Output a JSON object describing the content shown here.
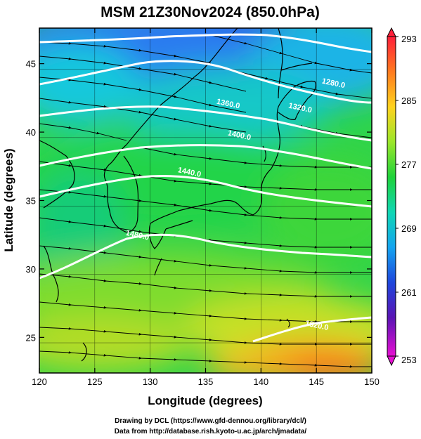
{
  "title": "MSM 21Z30Nov2024 (850.0hPa)",
  "map": {
    "x_label": "Longitude (degrees)",
    "y_label": "Latitude  (degrees)",
    "x_range": [
      120,
      150
    ],
    "y_range": [
      22.4,
      47.6
    ],
    "x_ticks": [
      "120",
      "125",
      "130",
      "135",
      "140",
      "145",
      "150"
    ],
    "y_ticks": [
      "25",
      "30",
      "35",
      "40",
      "45"
    ],
    "field": "temperature (shaded), geopotential height (white contours), wind (streamlines)"
  },
  "colorbar": {
    "range": [
      253,
      293
    ],
    "labels": [
      "293",
      "285",
      "277",
      "269",
      "261",
      "253"
    ],
    "colors": [
      "#ff1f3a",
      "#ff7a1e",
      "#ffd21e",
      "#9be62a",
      "#1ed23a",
      "#10d6b4",
      "#14a4f0",
      "#1e46dc",
      "#5a14b4",
      "#e60fd2"
    ]
  },
  "contours": [
    {
      "label": "1280.0",
      "lon": 146.5,
      "lat": 43.4
    },
    {
      "label": "1320.0",
      "lon": 143.5,
      "lat": 41.6
    },
    {
      "label": "1360.0",
      "lon": 137.0,
      "lat": 41.9
    },
    {
      "label": "1400.0",
      "lon": 138.0,
      "lat": 39.6
    },
    {
      "label": "1440.0",
      "lon": 133.5,
      "lat": 36.9
    },
    {
      "label": "1480.0",
      "lon": 128.8,
      "lat": 32.3
    },
    {
      "label": "1520.0",
      "lon": 145.0,
      "lat": 25.7
    }
  ],
  "credits": [
    "Drawing by DCL (https://www.gfd-dennou.org/library/dcl/)",
    "Data from http://database.rish.kyoto-u.ac.jp/arch/jmadata/"
  ]
}
